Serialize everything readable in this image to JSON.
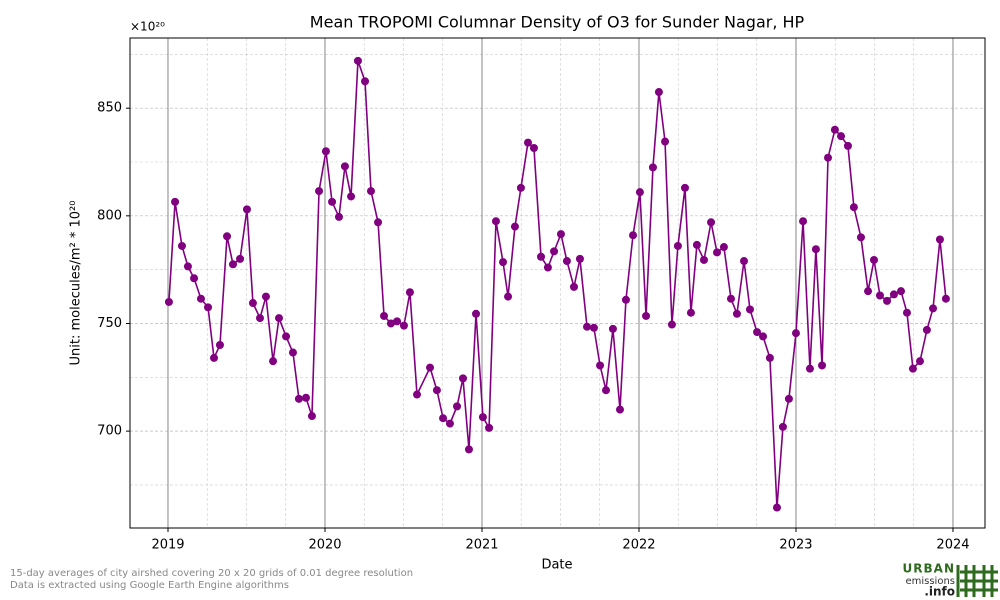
{
  "chart_data": {
    "type": "line",
    "title": "Mean TROPOMI Columnar Density of O3 for Sunder Nagar, HP",
    "xlabel": "Date",
    "ylabel": "Unit: molecules/m² * 10²⁰",
    "offset_text": "×10²⁰",
    "x": [
      2019.006,
      2019.045,
      2019.089,
      2019.127,
      2019.166,
      2019.21,
      2019.255,
      2019.293,
      2019.331,
      2019.376,
      2019.414,
      2019.459,
      2019.503,
      2019.541,
      2019.586,
      2019.624,
      2019.669,
      2019.707,
      2019.752,
      2019.796,
      2019.834,
      2019.879,
      2019.917,
      2019.962,
      2020.006,
      2020.045,
      2020.089,
      2020.127,
      2020.166,
      2020.21,
      2020.255,
      2020.293,
      2020.338,
      2020.376,
      2020.42,
      2020.459,
      2020.503,
      2020.541,
      2020.586,
      2020.669,
      2020.713,
      2020.752,
      2020.796,
      2020.841,
      2020.879,
      2020.917,
      2020.962,
      2021.006,
      2021.045,
      2021.089,
      2021.134,
      2021.166,
      2021.21,
      2021.248,
      2021.293,
      2021.331,
      2021.376,
      2021.42,
      2021.459,
      2021.503,
      2021.541,
      2021.586,
      2021.624,
      2021.669,
      2021.713,
      2021.752,
      2021.79,
      2021.834,
      2021.879,
      2021.917,
      2021.962,
      2022.006,
      2022.045,
      2022.089,
      2022.127,
      2022.166,
      2022.21,
      2022.248,
      2022.293,
      2022.331,
      2022.369,
      2022.414,
      2022.459,
      2022.497,
      2022.541,
      2022.586,
      2022.624,
      2022.669,
      2022.707,
      2022.752,
      2022.79,
      2022.834,
      2022.879,
      2022.917,
      2022.955,
      2023.0,
      2023.045,
      2023.089,
      2023.127,
      2023.166,
      2023.204,
      2023.248,
      2023.287,
      2023.331,
      2023.369,
      2023.414,
      2023.459,
      2023.497,
      2023.535,
      2023.58,
      2023.624,
      2023.669,
      2023.707,
      2023.745,
      2023.79,
      2023.834,
      2023.873,
      2023.917,
      2023.955
    ],
    "series": [
      {
        "name": "O3",
        "color": "#800080",
        "values": [
          760,
          806.5,
          786,
          776.5,
          771,
          761.5,
          757.5,
          734,
          740,
          790.5,
          777.5,
          780,
          803,
          759.5,
          752.5,
          762.5,
          732.5,
          752.5,
          744,
          736.5,
          715,
          715.5,
          707,
          811.5,
          830,
          806.5,
          799.5,
          823,
          809,
          872,
          862.5,
          811.5,
          797,
          753.5,
          750,
          751,
          749,
          764.5,
          717,
          729.5,
          719,
          706,
          703.5,
          711.5,
          724.5,
          691.5,
          754.5,
          706.5,
          701.5,
          797.5,
          778.5,
          762.5,
          795,
          813,
          834,
          831.5,
          781,
          776,
          783.5,
          791.5,
          779,
          767,
          780,
          748.5,
          748,
          730.5,
          719,
          747.5,
          710,
          761,
          791,
          811,
          753.5,
          822.5,
          857.5,
          834.5,
          749.5,
          786,
          813,
          755,
          786.5,
          779.5,
          797,
          783,
          785.5,
          761.5,
          754.5,
          779,
          756.5,
          746,
          744,
          734,
          664.5,
          702,
          715,
          745.5,
          797.5,
          729,
          784.5,
          730.5,
          827,
          840,
          837,
          832.5,
          804,
          790,
          765,
          779.5,
          763,
          760.5,
          763.5,
          765,
          755,
          729,
          732.5,
          747,
          757,
          789,
          761.5
        ]
      }
    ],
    "xlim": [
      2018.758,
      2024.204
    ],
    "ylim": [
      655,
      882.6
    ],
    "xticks": [
      2019,
      2020,
      2021,
      2022,
      2023,
      2024
    ],
    "yticks": [
      700,
      750,
      800,
      850
    ],
    "xminor": [
      2019.25,
      2019.5,
      2019.75,
      2020.25,
      2020.5,
      2020.75,
      2021.25,
      2021.5,
      2021.75,
      2022.25,
      2022.5,
      2022.75,
      2023.25,
      2023.5,
      2023.75
    ],
    "yminor": [
      675,
      725,
      775,
      825,
      875
    ],
    "grid": true,
    "footnotes": [
      "15-day averages of city airshed covering 20 x 20 grids of 0.01 degree resolution",
      "Data is extracted using Google Earth Engine algorithms"
    ],
    "logo": [
      "URBAN",
      "emissions",
      ".info"
    ]
  }
}
